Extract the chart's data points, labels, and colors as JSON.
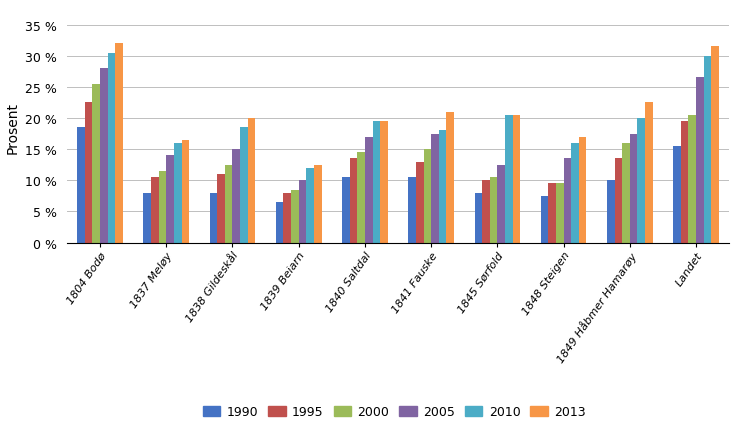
{
  "categories": [
    "1804 Bodø",
    "1837 Meløy",
    "1838 Gildeskål",
    "1839 Beiarn",
    "1840 Saltdal",
    "1841 Fauske",
    "1845 Sørfold",
    "1848 Steigen",
    "1849 Håbmer Hamarøy",
    "Landet"
  ],
  "series": {
    "1990": [
      18.5,
      8.0,
      8.0,
      6.5,
      10.5,
      10.5,
      8.0,
      7.5,
      10.0,
      15.5
    ],
    "1995": [
      22.5,
      10.5,
      11.0,
      8.0,
      13.5,
      13.0,
      10.0,
      9.5,
      13.5,
      19.5
    ],
    "2000": [
      25.5,
      11.5,
      12.5,
      8.5,
      14.5,
      15.0,
      10.5,
      9.5,
      16.0,
      20.5
    ],
    "2005": [
      28.0,
      14.0,
      15.0,
      10.0,
      17.0,
      17.5,
      12.5,
      13.5,
      17.5,
      26.5
    ],
    "2010": [
      30.5,
      16.0,
      18.5,
      12.0,
      19.5,
      18.0,
      20.5,
      16.0,
      20.0,
      30.0
    ],
    "2013": [
      32.0,
      16.5,
      20.0,
      12.5,
      19.5,
      21.0,
      20.5,
      17.0,
      22.5,
      31.5
    ]
  },
  "colors": {
    "1990": "#4472C4",
    "1995": "#C0504D",
    "2000": "#9BBB59",
    "2005": "#8064A2",
    "2010": "#4BACC6",
    "2013": "#F79646"
  },
  "ylabel": "Prosent",
  "ylim": [
    0,
    37
  ],
  "yticks": [
    0,
    5,
    10,
    15,
    20,
    25,
    30,
    35
  ],
  "ytick_labels": [
    "0 %",
    "5 %",
    "10 %",
    "15 %",
    "20 %",
    "25 %",
    "30 %",
    "35 %"
  ],
  "background_color": "#ffffff",
  "grid_color": "#bfbfbf"
}
